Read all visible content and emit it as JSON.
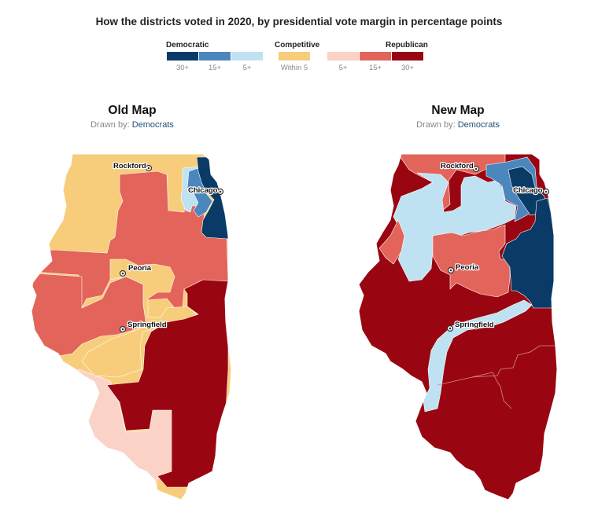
{
  "title": "How the districts voted in 2020, by presidential vote margin in percentage points",
  "legend": {
    "democratic_label": "Democratic",
    "competitive_label": "Competitive",
    "republican_label": "Republican",
    "items": [
      {
        "label": "30+",
        "color": "#0a3b66"
      },
      {
        "label": "15+",
        "color": "#4b86bd"
      },
      {
        "label": "5+",
        "color": "#bfe2f3"
      },
      {
        "label": "Within 5",
        "color": "#f7cd7b"
      },
      {
        "label": "5+",
        "color": "#fbd2c6"
      },
      {
        "label": "15+",
        "color": "#e3645a"
      },
      {
        "label": "30+",
        "color": "#990611"
      }
    ]
  },
  "maps": [
    {
      "title": "Old Map",
      "drawn_by_prefix": "Drawn by:",
      "drawn_by": "Democrats",
      "cities": [
        "Rockford",
        "Chicago",
        "Peoria",
        "Springfield"
      ]
    },
    {
      "title": "New Map",
      "drawn_by_prefix": "Drawn by:",
      "drawn_by": "Democrats",
      "cities": [
        "Rockford",
        "Chicago",
        "Peoria",
        "Springfield"
      ]
    }
  ]
}
